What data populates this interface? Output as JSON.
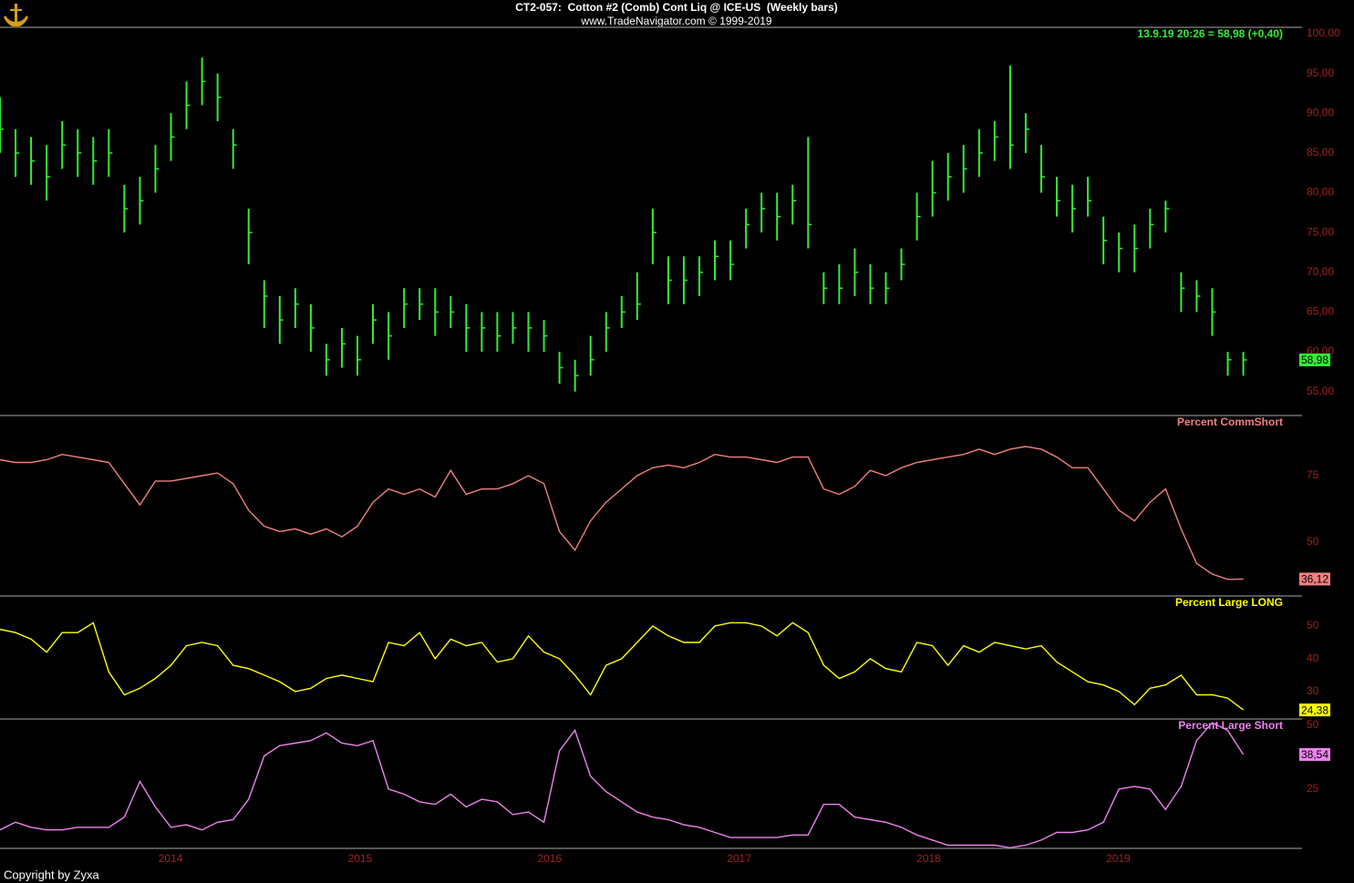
{
  "footer": "Copyright by Zyxa",
  "chart_data": [
    {
      "type": "ohlc",
      "title": "CT2-057:  Cotton #2 (Comb) Cont Liq @ ICE-US  (Weekly bars)",
      "subtitle": "www.TradeNavigator.com © 1999-2019",
      "annotation": "13.9.19 20:26 = 58,98 (+0,40)",
      "color": "#33ee33",
      "x": [
        2013.1,
        2013.182,
        2013.264,
        2013.346,
        2013.428,
        2013.51,
        2013.592,
        2013.674,
        2013.756,
        2013.838,
        2013.92,
        2014.002,
        2014.084,
        2014.166,
        2014.248,
        2014.33,
        2014.412,
        2014.494,
        2014.576,
        2014.658,
        2014.74,
        2014.822,
        2014.904,
        2014.986,
        2015.068,
        2015.15,
        2015.232,
        2015.314,
        2015.396,
        2015.478,
        2015.56,
        2015.642,
        2015.724,
        2015.806,
        2015.888,
        2015.97,
        2016.052,
        2016.134,
        2016.216,
        2016.298,
        2016.38,
        2016.462,
        2016.544,
        2016.626,
        2016.708,
        2016.79,
        2016.872,
        2016.954,
        2017.036,
        2017.118,
        2017.2,
        2017.282,
        2017.364,
        2017.446,
        2017.528,
        2017.61,
        2017.692,
        2017.774,
        2017.856,
        2017.938,
        2018.02,
        2018.102,
        2018.184,
        2018.266,
        2018.348,
        2018.43,
        2018.512,
        2018.594,
        2018.676,
        2018.758,
        2018.84,
        2018.922,
        2019.004,
        2019.086,
        2019.168,
        2019.25,
        2019.332,
        2019.414,
        2019.496,
        2019.578,
        2019.66
      ],
      "high": [
        92,
        88,
        87,
        86,
        89,
        88,
        87,
        88,
        81,
        82,
        86,
        90,
        94,
        97,
        95,
        88,
        78,
        69,
        67,
        68,
        66,
        61,
        63,
        62,
        66,
        65,
        68,
        68,
        68,
        67,
        66,
        65,
        65,
        65,
        65,
        64,
        60,
        59,
        62,
        65,
        67,
        70,
        78,
        72,
        72,
        72,
        74,
        74,
        78,
        80,
        80,
        81,
        87,
        70,
        71,
        73,
        71,
        70,
        73,
        80,
        84,
        85,
        86,
        88,
        89,
        96,
        90,
        86,
        82,
        81,
        82,
        77,
        75,
        76,
        78,
        79,
        70,
        69,
        68,
        60,
        60
      ],
      "low": [
        85,
        82,
        81,
        79,
        83,
        82,
        81,
        82,
        75,
        76,
        80,
        84,
        88,
        91,
        89,
        83,
        71,
        63,
        61,
        63,
        60,
        57,
        58,
        57,
        61,
        59,
        63,
        64,
        62,
        63,
        60,
        60,
        60,
        61,
        60,
        60,
        56,
        55,
        57,
        60,
        63,
        64,
        71,
        66,
        66,
        67,
        69,
        69,
        73,
        75,
        74,
        76,
        73,
        66,
        66,
        67,
        66,
        66,
        69,
        74,
        77,
        79,
        80,
        82,
        84,
        83,
        85,
        80,
        77,
        75,
        77,
        71,
        70,
        70,
        73,
        75,
        65,
        65,
        62,
        57,
        57
      ],
      "close": [
        88,
        85,
        84,
        82,
        86,
        85,
        84,
        85,
        78,
        79,
        83,
        87,
        91,
        94,
        92,
        86,
        75,
        67,
        64,
        66,
        63,
        59,
        61,
        59,
        64,
        62,
        66,
        66,
        65,
        65,
        63,
        63,
        62,
        63,
        63,
        62,
        58,
        57,
        59,
        63,
        65,
        66,
        75,
        69,
        69,
        70,
        72,
        71,
        76,
        78,
        77,
        79,
        76,
        68,
        68,
        70,
        68,
        68,
        71,
        77,
        80,
        82,
        83,
        85,
        87,
        86,
        88,
        82,
        79,
        78,
        79,
        74,
        73,
        73,
        76,
        78,
        68,
        67,
        65,
        59,
        58.98
      ],
      "xlim": [
        2013.1,
        2019.97
      ],
      "ylim": [
        52.1,
        100.8
      ],
      "yticks": [
        {
          "value": 100,
          "label": "100,00"
        },
        {
          "value": 95,
          "label": "95,00"
        },
        {
          "value": 90,
          "label": "90,00"
        },
        {
          "value": 85,
          "label": "85,00"
        },
        {
          "value": 80,
          "label": "80,00"
        },
        {
          "value": 75,
          "label": "75,00"
        },
        {
          "value": 70,
          "label": "70,00"
        },
        {
          "value": 65,
          "label": "65,00"
        },
        {
          "value": 60,
          "label": "60,00"
        },
        {
          "value": 55,
          "label": "55,00"
        }
      ],
      "last_label": {
        "value": 58.98,
        "label": "58,98"
      }
    },
    {
      "type": "line",
      "title": "Percent CommShort",
      "color": "#f08080",
      "x": [
        2013.1,
        2013.182,
        2013.264,
        2013.346,
        2013.428,
        2013.51,
        2013.592,
        2013.674,
        2013.756,
        2013.838,
        2013.92,
        2014.002,
        2014.084,
        2014.166,
        2014.248,
        2014.33,
        2014.412,
        2014.494,
        2014.576,
        2014.658,
        2014.74,
        2014.822,
        2014.904,
        2014.986,
        2015.068,
        2015.15,
        2015.232,
        2015.314,
        2015.396,
        2015.478,
        2015.56,
        2015.642,
        2015.724,
        2015.806,
        2015.888,
        2015.97,
        2016.052,
        2016.134,
        2016.216,
        2016.298,
        2016.38,
        2016.462,
        2016.544,
        2016.626,
        2016.708,
        2016.79,
        2016.872,
        2016.954,
        2017.036,
        2017.118,
        2017.2,
        2017.282,
        2017.364,
        2017.446,
        2017.528,
        2017.61,
        2017.692,
        2017.774,
        2017.856,
        2017.938,
        2018.02,
        2018.102,
        2018.184,
        2018.266,
        2018.348,
        2018.43,
        2018.512,
        2018.594,
        2018.676,
        2018.758,
        2018.84,
        2018.922,
        2019.004,
        2019.086,
        2019.168,
        2019.25,
        2019.332,
        2019.414,
        2019.496,
        2019.578,
        2019.66
      ],
      "values": [
        81,
        80,
        80,
        81,
        83,
        82,
        81,
        80,
        72,
        64,
        73,
        73,
        74,
        75,
        76,
        72,
        62,
        56,
        54,
        55,
        53,
        55,
        52,
        56,
        65,
        70,
        68,
        70,
        67,
        77,
        68,
        70,
        70,
        72,
        75,
        72,
        54,
        47,
        58,
        65,
        70,
        75,
        78,
        79,
        78,
        80,
        83,
        82,
        82,
        81,
        80,
        82,
        82,
        70,
        68,
        71,
        77,
        75,
        78,
        80,
        81,
        82,
        83,
        85,
        83,
        85,
        86,
        85,
        82,
        78,
        78,
        70,
        62,
        58,
        65,
        70,
        55,
        42,
        38,
        36,
        36.12
      ],
      "xlim": [
        2013.1,
        2019.97
      ],
      "ylim": [
        30.1,
        97.3
      ],
      "yticks": [
        75,
        50
      ],
      "last_label": {
        "value": 36.12,
        "label": "36,12"
      }
    },
    {
      "type": "line",
      "title": "Percent Large LONG",
      "color": "#ffff00",
      "x": [
        2013.1,
        2013.182,
        2013.264,
        2013.346,
        2013.428,
        2013.51,
        2013.592,
        2013.674,
        2013.756,
        2013.838,
        2013.92,
        2014.002,
        2014.084,
        2014.166,
        2014.248,
        2014.33,
        2014.412,
        2014.494,
        2014.576,
        2014.658,
        2014.74,
        2014.822,
        2014.904,
        2014.986,
        2015.068,
        2015.15,
        2015.232,
        2015.314,
        2015.396,
        2015.478,
        2015.56,
        2015.642,
        2015.724,
        2015.806,
        2015.888,
        2015.97,
        2016.052,
        2016.134,
        2016.216,
        2016.298,
        2016.38,
        2016.462,
        2016.544,
        2016.626,
        2016.708,
        2016.79,
        2016.872,
        2016.954,
        2017.036,
        2017.118,
        2017.2,
        2017.282,
        2017.364,
        2017.446,
        2017.528,
        2017.61,
        2017.692,
        2017.774,
        2017.856,
        2017.938,
        2018.02,
        2018.102,
        2018.184,
        2018.266,
        2018.348,
        2018.43,
        2018.512,
        2018.594,
        2018.676,
        2018.758,
        2018.84,
        2018.922,
        2019.004,
        2019.086,
        2019.168,
        2019.25,
        2019.332,
        2019.414,
        2019.496,
        2019.578,
        2019.66
      ],
      "values": [
        49,
        48,
        46,
        42,
        48,
        48,
        51,
        36,
        29,
        31,
        34,
        38,
        44,
        45,
        44,
        38,
        37,
        35,
        33,
        30,
        31,
        34,
        35,
        34,
        33,
        45,
        44,
        48,
        40,
        46,
        44,
        45,
        39,
        40,
        47,
        42,
        40,
        35,
        29,
        38,
        40,
        45,
        50,
        47,
        45,
        45,
        50,
        51,
        51,
        50,
        47,
        51,
        48,
        38,
        34,
        36,
        40,
        37,
        36,
        45,
        44,
        38,
        44,
        42,
        45,
        44,
        43,
        44,
        39,
        36,
        33,
        32,
        30,
        26,
        31,
        32,
        35,
        29,
        29,
        28,
        24.38
      ],
      "xlim": [
        2013.1,
        2019.97
      ],
      "ylim": [
        21.9,
        58.9
      ],
      "yticks": [
        50,
        40,
        30
      ],
      "last_label": {
        "value": 24.38,
        "label": "24,38"
      }
    },
    {
      "type": "line",
      "title": "Percent Large Short",
      "color": "#ee82ee",
      "x": [
        2013.1,
        2013.182,
        2013.264,
        2013.346,
        2013.428,
        2013.51,
        2013.592,
        2013.674,
        2013.756,
        2013.838,
        2013.92,
        2014.002,
        2014.084,
        2014.166,
        2014.248,
        2014.33,
        2014.412,
        2014.494,
        2014.576,
        2014.658,
        2014.74,
        2014.822,
        2014.904,
        2014.986,
        2015.068,
        2015.15,
        2015.232,
        2015.314,
        2015.396,
        2015.478,
        2015.56,
        2015.642,
        2015.724,
        2015.806,
        2015.888,
        2015.97,
        2016.052,
        2016.134,
        2016.216,
        2016.298,
        2016.38,
        2016.462,
        2016.544,
        2016.626,
        2016.708,
        2016.79,
        2016.872,
        2016.954,
        2017.036,
        2017.118,
        2017.2,
        2017.282,
        2017.364,
        2017.446,
        2017.528,
        2017.61,
        2017.692,
        2017.774,
        2017.856,
        2017.938,
        2018.02,
        2018.102,
        2018.184,
        2018.266,
        2018.348,
        2018.43,
        2018.512,
        2018.594,
        2018.676,
        2018.758,
        2018.84,
        2018.922,
        2019.004,
        2019.086,
        2019.168,
        2019.25,
        2019.332,
        2019.414,
        2019.496,
        2019.578,
        2019.66
      ],
      "values": [
        9,
        12,
        10,
        9,
        9,
        10,
        10,
        10,
        14,
        28,
        18,
        10,
        11,
        9,
        12,
        13,
        21,
        38,
        42,
        43,
        44,
        47,
        43,
        42,
        44,
        25,
        23,
        20,
        19,
        23,
        18,
        21,
        20,
        15,
        16,
        12,
        40,
        48,
        30,
        24,
        20,
        16,
        14,
        13,
        11,
        10,
        8,
        6,
        6,
        6,
        6,
        7,
        7,
        19,
        19,
        14,
        13,
        12,
        10,
        7,
        5,
        3,
        3,
        3,
        3,
        2,
        3,
        5,
        8,
        8,
        9,
        12,
        25,
        26,
        25,
        17,
        26,
        44,
        51,
        48,
        38.54
      ],
      "xlim": [
        2013.1,
        2019.97
      ],
      "ylim": [
        2.1,
        52.1
      ],
      "yticks": [
        50,
        25
      ],
      "xticks": [
        2014,
        2015,
        2016,
        2017,
        2018,
        2019
      ],
      "last_label": {
        "value": 38.54,
        "label": "38,54"
      }
    }
  ]
}
